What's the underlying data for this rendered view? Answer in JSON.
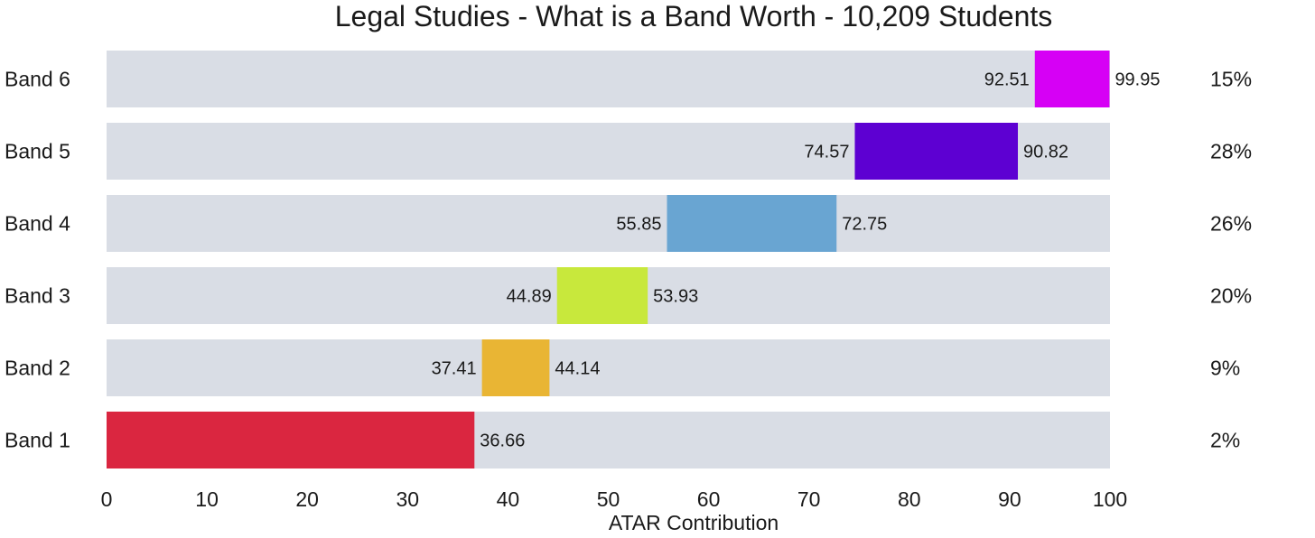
{
  "chart_data": {
    "type": "bar",
    "orientation": "horizontal-range",
    "title": "Legal Studies - What is a Band Worth - 10,209 Students",
    "xlabel": "ATAR Contribution",
    "ylabel": "",
    "xlim": [
      0,
      100
    ],
    "xticks": [
      "0",
      "10",
      "20",
      "30",
      "40",
      "50",
      "60",
      "70",
      "80",
      "90",
      "100"
    ],
    "grid": false,
    "background_bar_color": "#d9dde5",
    "bands": [
      {
        "label": "Band 6",
        "start": 92.51,
        "end": 99.95,
        "start_label": "92.51",
        "end_label": "99.95",
        "percent": "15%",
        "color": "#d600f5"
      },
      {
        "label": "Band 5",
        "start": 74.57,
        "end": 90.82,
        "start_label": "74.57",
        "end_label": "90.82",
        "percent": "28%",
        "color": "#5d00d2"
      },
      {
        "label": "Band 4",
        "start": 55.85,
        "end": 72.75,
        "start_label": "55.85",
        "end_label": "72.75",
        "percent": "26%",
        "color": "#69a5d2"
      },
      {
        "label": "Band 3",
        "start": 44.89,
        "end": 53.93,
        "start_label": "44.89",
        "end_label": "53.93",
        "percent": "20%",
        "color": "#c8e83c"
      },
      {
        "label": "Band 2",
        "start": 37.41,
        "end": 44.14,
        "start_label": "37.41",
        "end_label": "44.14",
        "percent": "9%",
        "color": "#e9b534"
      },
      {
        "label": "Band 1",
        "start": 0,
        "end": 36.66,
        "start_label": "",
        "end_label": "36.66",
        "percent": "2%",
        "color": "#da2640"
      }
    ]
  }
}
